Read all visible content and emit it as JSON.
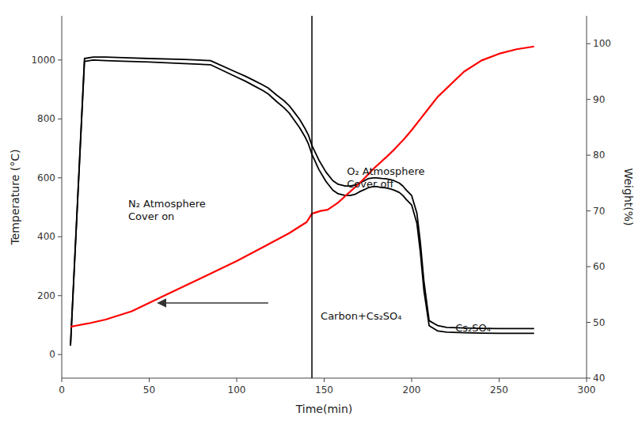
{
  "chart_data": {
    "type": "line",
    "x_label": "Time(min)",
    "y_label": "Temperature (°C)",
    "y2_label": "Weight(%)",
    "xlim": [
      0,
      300
    ],
    "ylim": [
      -80,
      1150
    ],
    "y2lim": [
      40,
      105
    ],
    "xticks": [
      0,
      50,
      100,
      150,
      200,
      250,
      300
    ],
    "yticks": [
      0,
      200,
      400,
      600,
      800,
      1000
    ],
    "y2ticks": [
      40,
      50,
      60,
      70,
      80,
      90,
      100
    ],
    "grid": false,
    "series": [
      {
        "color": "#000000",
        "x": [
          5,
          13,
          18,
          25,
          35,
          50,
          70,
          85,
          100,
          105,
          110,
          115,
          118,
          120,
          123,
          127,
          130,
          133,
          136,
          139,
          141,
          143,
          147,
          151,
          155,
          158,
          162,
          165,
          168,
          170,
          173,
          175,
          178,
          180,
          183,
          185,
          188,
          190,
          193,
          195,
          197,
          200,
          203,
          205,
          207,
          210,
          215,
          220,
          230,
          240,
          250,
          260,
          270
        ],
        "values": [
          30,
          1005,
          1010,
          1010,
          1008,
          1005,
          1002,
          998,
          958,
          945,
          930,
          915,
          905,
          895,
          880,
          862,
          845,
          822,
          798,
          768,
          745,
          710,
          660,
          620,
          590,
          578,
          572,
          572,
          576,
          582,
          590,
          597,
          600,
          600,
          598,
          597,
          594,
          590,
          582,
          572,
          558,
          540,
          480,
          380,
          250,
          115,
          98,
          92,
          90,
          89,
          88,
          88,
          88
        ]
      },
      {
        "color": "#000000",
        "x": [
          5,
          13,
          18,
          25,
          35,
          50,
          70,
          85,
          100,
          105,
          110,
          115,
          118,
          120,
          123,
          127,
          130,
          133,
          136,
          139,
          141,
          143,
          147,
          151,
          155,
          158,
          162,
          165,
          168,
          170,
          173,
          175,
          178,
          180,
          183,
          185,
          188,
          190,
          193,
          195,
          197,
          200,
          203,
          205,
          207,
          210,
          215,
          220,
          230,
          240,
          250,
          260,
          270
        ],
        "values": [
          30,
          995,
          1000,
          998,
          996,
          993,
          988,
          984,
          942,
          928,
          912,
          896,
          885,
          874,
          858,
          838,
          820,
          795,
          770,
          740,
          715,
          680,
          628,
          588,
          558,
          546,
          540,
          540,
          545,
          552,
          560,
          566,
          570,
          570,
          567,
          566,
          562,
          558,
          550,
          540,
          526,
          508,
          446,
          346,
          218,
          98,
          80,
          76,
          74,
          73,
          72,
          72,
          72
        ]
      },
      {
        "color": "#ff0000",
        "axis": "y2",
        "x": [
          5,
          8,
          15,
          25,
          40,
          60,
          80,
          100,
          115,
          130,
          140,
          143,
          148,
          152,
          158,
          165,
          172,
          178,
          185,
          190,
          196,
          200,
          205,
          210,
          215,
          220,
          225,
          230,
          240,
          250,
          260,
          270
        ],
        "values": [
          49.2,
          49.4,
          49.8,
          50.5,
          52,
          55,
          58,
          61,
          63.5,
          66,
          68,
          69.5,
          70.0,
          70.2,
          71.5,
          73.5,
          75.5,
          77.5,
          79.5,
          81,
          83,
          84.5,
          86.5,
          88.5,
          90.5,
          92,
          93.5,
          95,
          97,
          98.2,
          99.0,
          99.5
        ]
      }
    ],
    "vlines": [
      {
        "x": 143,
        "color": "#000000"
      }
    ],
    "annotations": [
      {
        "text": [
          "N₂ Atmosphere",
          "Cover on"
        ],
        "x": 38,
        "y": 490
      },
      {
        "text": [
          "O₂ Atmosphere",
          "Cover off"
        ],
        "x": 163,
        "y": 600
      },
      {
        "text": [
          "Carbon+Cs₂SO₄"
        ],
        "x": 148,
        "y": 130
      },
      {
        "text": [
          "Cs₂SO₄"
        ],
        "x": 225,
        "y": 90
      }
    ],
    "arrows": [
      {
        "x_from": 118,
        "x_to": 55,
        "y": 175
      }
    ]
  }
}
